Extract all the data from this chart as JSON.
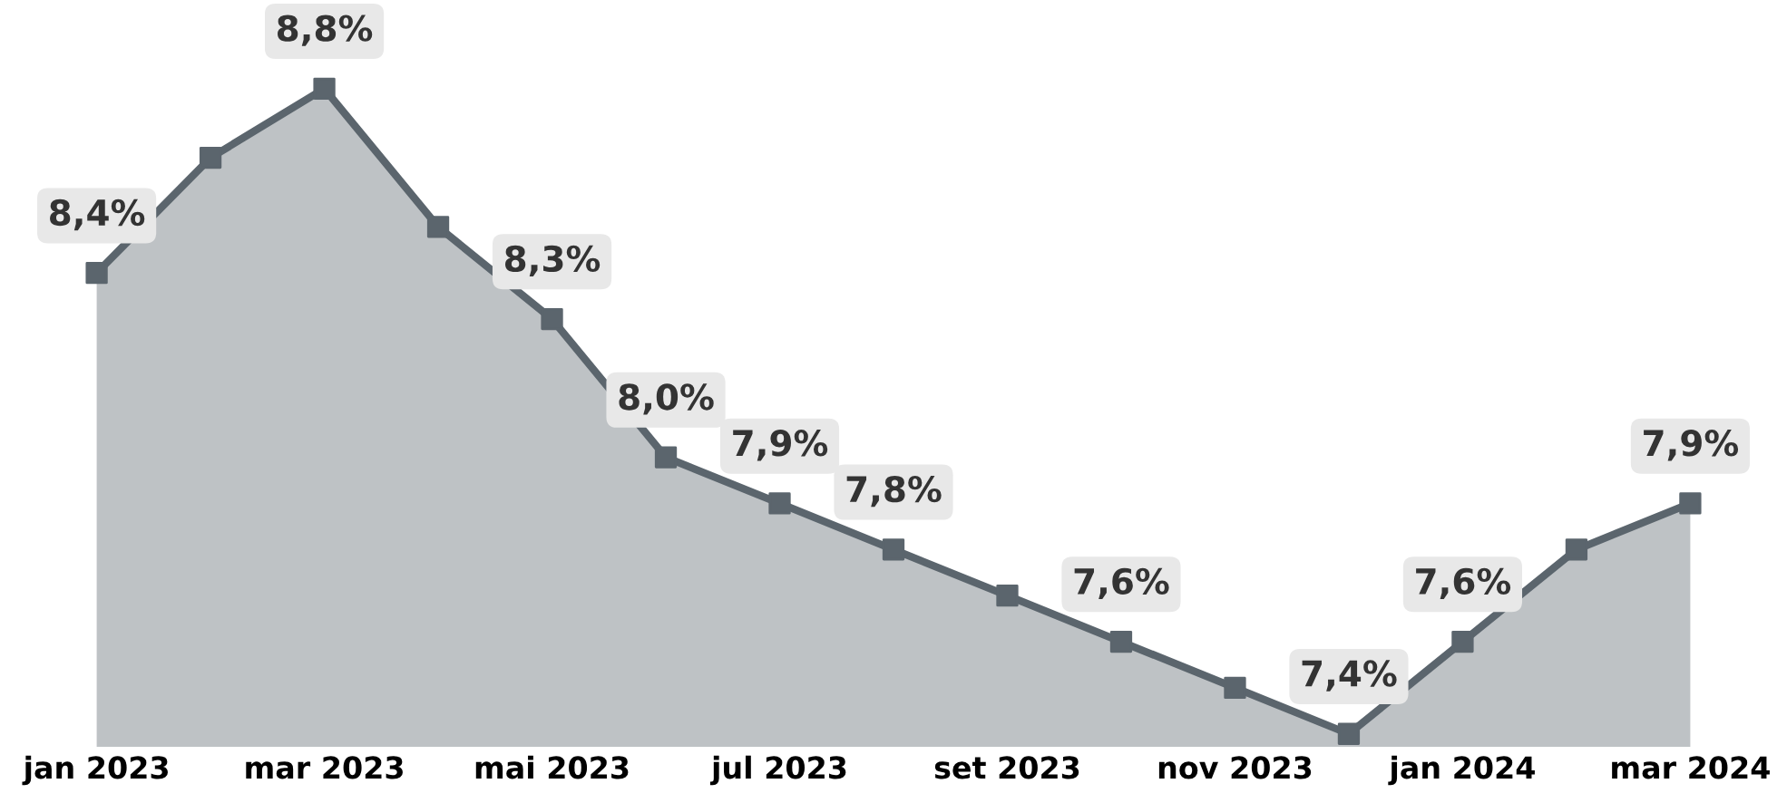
{
  "chart_data": {
    "type": "area",
    "categories": [
      "jan 2023",
      null,
      "mar 2023",
      null,
      "mai 2023",
      null,
      "jul 2023",
      null,
      "set 2023",
      null,
      "nov 2023",
      null,
      "jan 2024",
      null,
      "mar 2024"
    ],
    "series": [
      {
        "color": "#bec2c5",
        "values": [
          8.4,
          8.65,
          8.8,
          8.5,
          8.3,
          8.0,
          7.9,
          7.8,
          7.7,
          7.6,
          7.5,
          7.4,
          7.6,
          7.8,
          7.9
        ],
        "value_labels": [
          "8,4%",
          null,
          "8,8%",
          null,
          "8,3%",
          "8,0%",
          "7,9%",
          "7,8%",
          null,
          "7,6%",
          null,
          "7,4%",
          "7,6%",
          null,
          "7,9%"
        ]
      }
    ],
    "marker": "square",
    "grid": false,
    "legend": false
  }
}
